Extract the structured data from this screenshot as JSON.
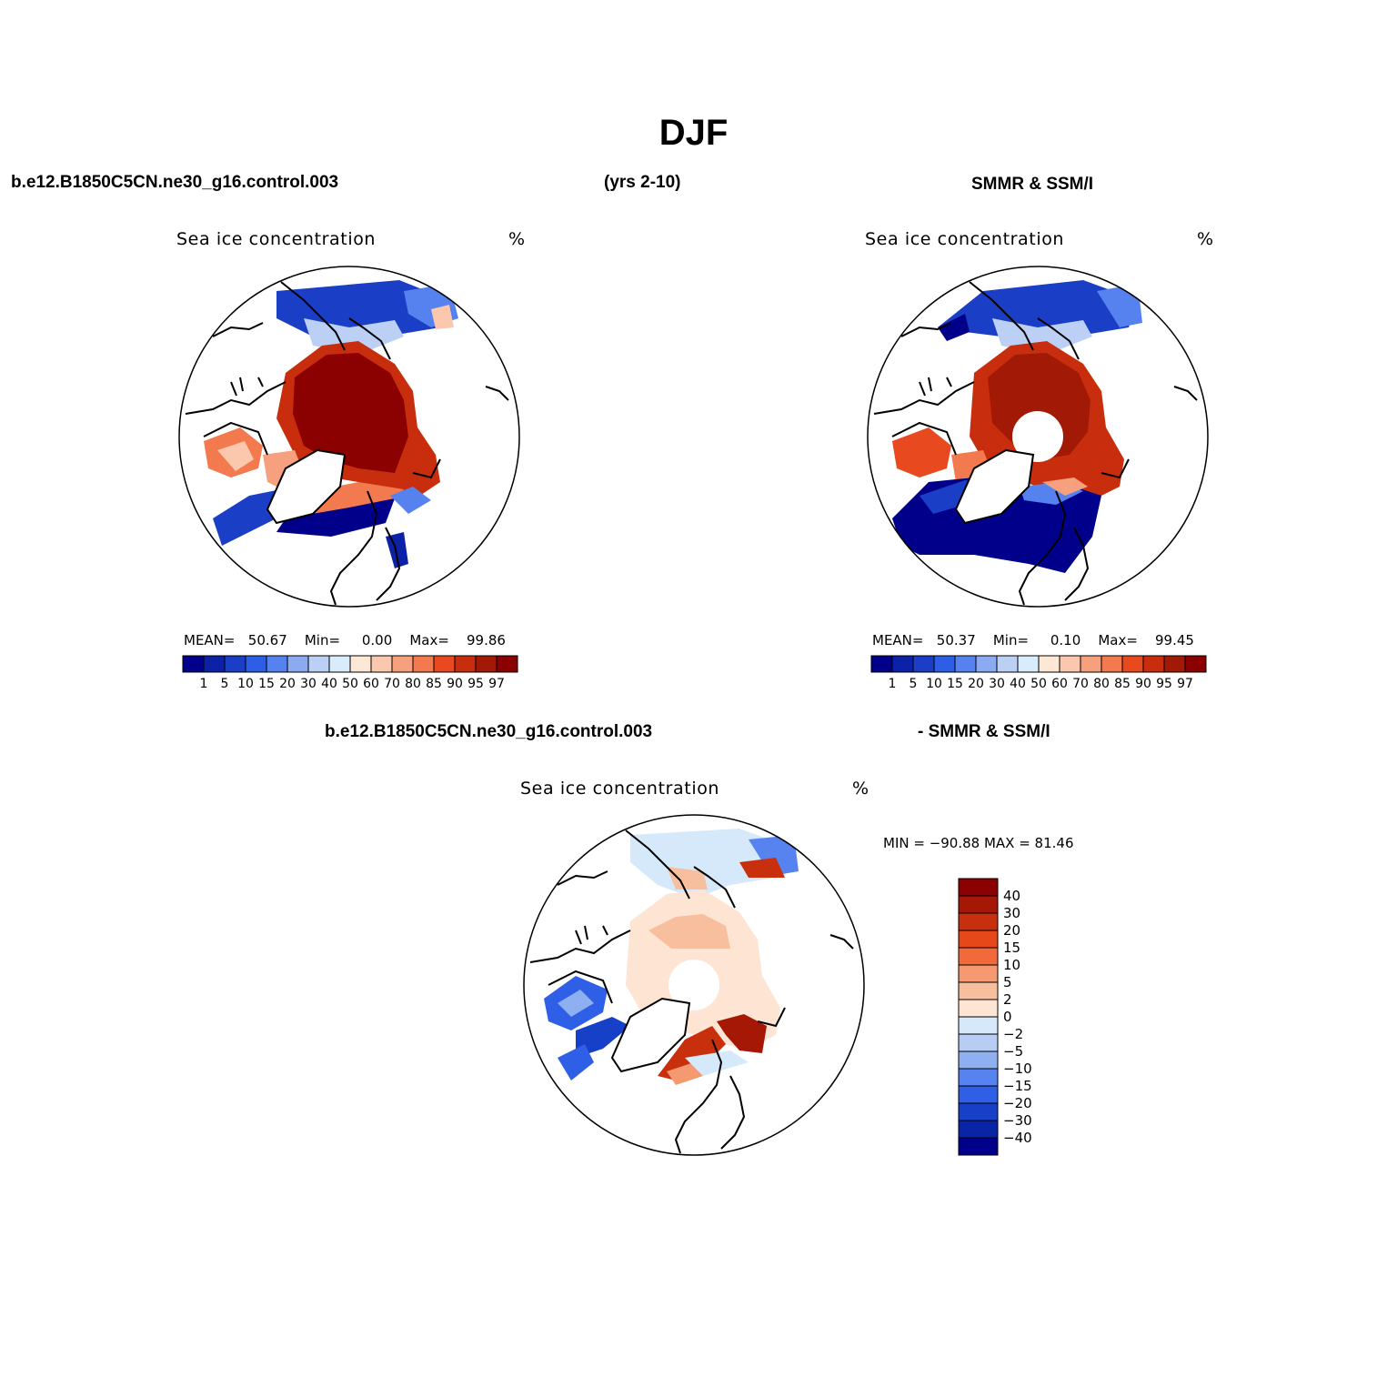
{
  "title": "DJF",
  "header": {
    "model_case": "b.e12.B1850C5CN.ne30_g16.control.003",
    "years": "(yrs 2-10)",
    "obs_name": "SMMR & SSM/I",
    "diff_model_case": "b.e12.B1850C5CN.ne30_g16.control.003",
    "diff_obs_name": "- SMMR & SSM/I"
  },
  "panels": {
    "model": {
      "title": "Sea ice concentration",
      "units": "%",
      "mean_label": "MEAN=",
      "mean": "50.67",
      "min_label": "Min=",
      "min": "0.00",
      "max_label": "Max=",
      "max": "99.86"
    },
    "obs": {
      "title": "Sea ice concentration",
      "units": "%",
      "mean_label": "MEAN=",
      "mean": "50.37",
      "min_label": "Min=",
      "min": "0.10",
      "max_label": "Max=",
      "max": "99.45"
    },
    "diff": {
      "title": "Sea ice concentration",
      "units": "%",
      "minmax_text": "MIN = −90.88 MAX =   81.46"
    }
  },
  "colorbar_main": {
    "labels": [
      "1",
      "5",
      "10",
      "15",
      "20",
      "30",
      "40",
      "50",
      "60",
      "70",
      "80",
      "85",
      "90",
      "95",
      "97"
    ],
    "colors": [
      "#00008b",
      "#0b22a8",
      "#1a3ec6",
      "#2e5ee6",
      "#5682f0",
      "#8aaaf2",
      "#bcd0f6",
      "#d9ecfb",
      "#fde8d6",
      "#fbc8ad",
      "#f6a07e",
      "#f27a4e",
      "#e9491f",
      "#c82e0e",
      "#a21a06",
      "#8b0000"
    ]
  },
  "colorbar_diff": {
    "labels": [
      "40",
      "30",
      "20",
      "15",
      "10",
      "5",
      "2",
      "0",
      "−2",
      "−5",
      "−10",
      "−15",
      "−20",
      "−30",
      "−40"
    ],
    "colors": [
      "#8b0000",
      "#a61806",
      "#c8300d",
      "#e6481a",
      "#f26a3a",
      "#f59a70",
      "#f8bf9f",
      "#fde4d3",
      "#d5e9fb",
      "#b7cdf3",
      "#8eb0f1",
      "#5683f0",
      "#2f5fe6",
      "#1740c8",
      "#0a24a8",
      "#00008b"
    ]
  }
}
